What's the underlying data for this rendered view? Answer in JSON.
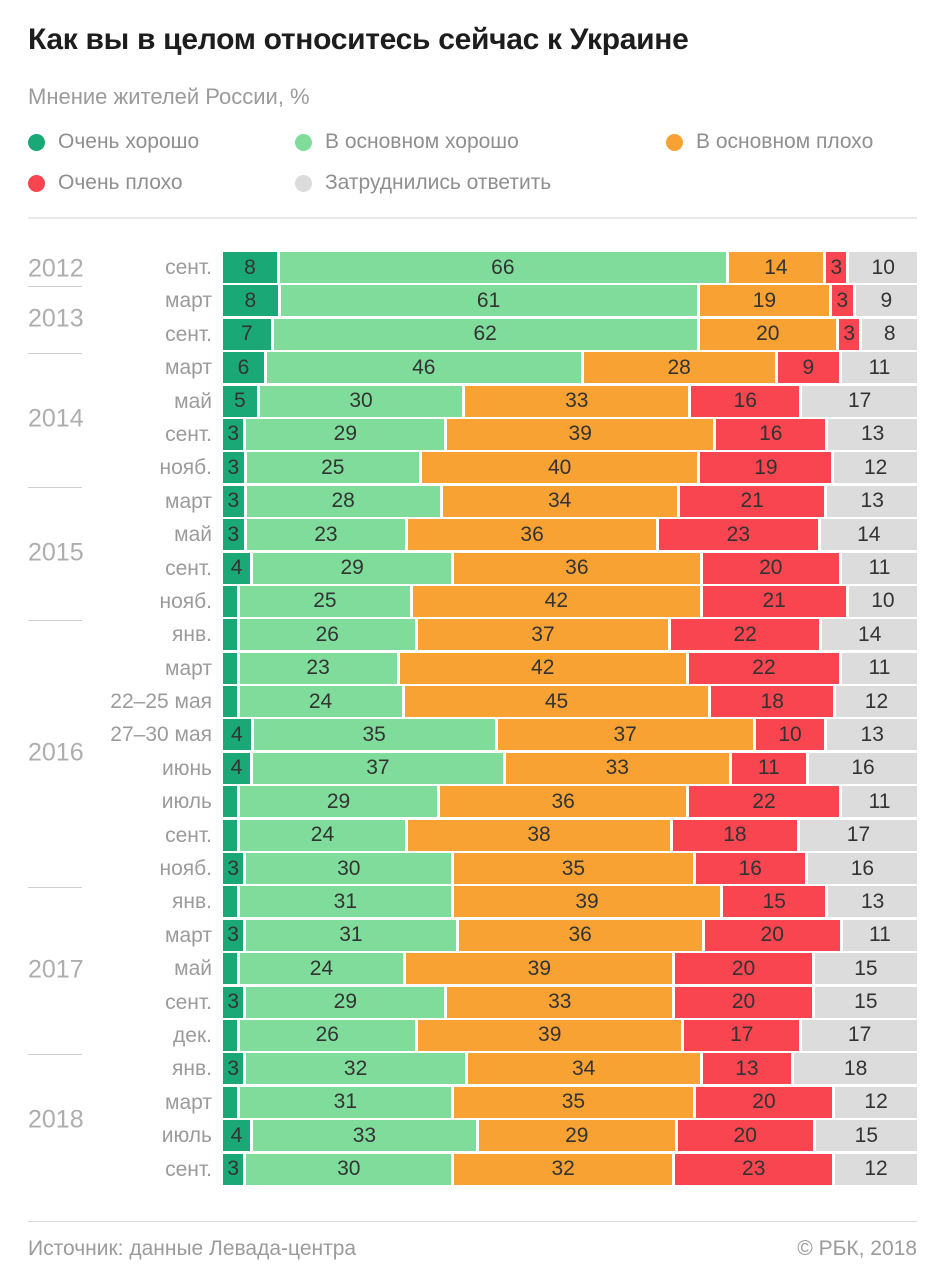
{
  "title": "Как вы в целом относитесь сейчас к Украине",
  "subtitle": "Мнение жителей России, %",
  "legend": [
    {
      "label": "Очень хорошо",
      "color": "#1ba877"
    },
    {
      "label": "В основном хорошо",
      "color": "#7fdc9b"
    },
    {
      "label": "В основном плохо",
      "color": "#f9a234"
    },
    {
      "label": "Очень плохо",
      "color": "#f8454f"
    },
    {
      "label": "Затруднились ответить",
      "color": "#dcdcdc"
    }
  ],
  "footer": {
    "source": "Источник: данные Левада-центра",
    "copyright": "© РБК, 2018"
  },
  "chart_data": {
    "type": "bar",
    "stacked": true,
    "orientation": "horizontal",
    "unit": "%",
    "label_min_value": 3,
    "series_names": [
      "Очень хорошо",
      "В основном хорошо",
      "В основном плохо",
      "Очень плохо",
      "Затруднились ответить"
    ],
    "groups": [
      {
        "year": "2012",
        "rows": [
          {
            "month": "сент.",
            "values": [
              8,
              66,
              14,
              3,
              10
            ]
          }
        ]
      },
      {
        "year": "2013",
        "rows": [
          {
            "month": "март",
            "values": [
              8,
              61,
              19,
              3,
              9
            ]
          },
          {
            "month": "сент.",
            "values": [
              7,
              62,
              20,
              3,
              8
            ]
          }
        ]
      },
      {
        "year": "2014",
        "rows": [
          {
            "month": "март",
            "values": [
              6,
              46,
              28,
              9,
              11
            ]
          },
          {
            "month": "май",
            "values": [
              5,
              30,
              33,
              16,
              17
            ]
          },
          {
            "month": "сент.",
            "values": [
              3,
              29,
              39,
              16,
              13
            ]
          },
          {
            "month": "нояб.",
            "values": [
              3,
              25,
              40,
              19,
              12
            ]
          }
        ]
      },
      {
        "year": "2015",
        "rows": [
          {
            "month": "март",
            "values": [
              3,
              28,
              34,
              21,
              13
            ]
          },
          {
            "month": "май",
            "values": [
              3,
              23,
              36,
              23,
              14
            ]
          },
          {
            "month": "сент.",
            "values": [
              4,
              29,
              36,
              20,
              11
            ]
          },
          {
            "month": "нояб.",
            "values": [
              2,
              25,
              42,
              21,
              10
            ]
          }
        ]
      },
      {
        "year": "2016",
        "rows": [
          {
            "month": "янв.",
            "values": [
              2,
              26,
              37,
              22,
              14
            ]
          },
          {
            "month": "март",
            "values": [
              2,
              23,
              42,
              22,
              11
            ]
          },
          {
            "month": "22–25 мая",
            "values": [
              2,
              24,
              45,
              18,
              12
            ]
          },
          {
            "month": "27–30 мая",
            "values": [
              4,
              35,
              37,
              10,
              13
            ]
          },
          {
            "month": "июнь",
            "values": [
              4,
              37,
              33,
              11,
              16
            ]
          },
          {
            "month": "июль",
            "values": [
              2,
              29,
              36,
              22,
              11
            ]
          },
          {
            "month": "сент.",
            "values": [
              2,
              24,
              38,
              18,
              17
            ]
          },
          {
            "month": "нояб.",
            "values": [
              3,
              30,
              35,
              16,
              16
            ]
          }
        ]
      },
      {
        "year": "2017",
        "rows": [
          {
            "month": "янв.",
            "values": [
              2,
              31,
              39,
              15,
              13
            ]
          },
          {
            "month": "март",
            "values": [
              3,
              31,
              36,
              20,
              11
            ]
          },
          {
            "month": "май",
            "values": [
              2,
              24,
              39,
              20,
              15
            ]
          },
          {
            "month": "сент.",
            "values": [
              3,
              29,
              33,
              20,
              15
            ]
          },
          {
            "month": "дек.",
            "values": [
              2,
              26,
              39,
              17,
              17
            ]
          }
        ]
      },
      {
        "year": "2018",
        "rows": [
          {
            "month": "янв.",
            "values": [
              3,
              32,
              34,
              13,
              18
            ]
          },
          {
            "month": "март",
            "values": [
              2,
              31,
              35,
              20,
              12
            ]
          },
          {
            "month": "июль",
            "values": [
              4,
              33,
              29,
              20,
              15
            ]
          },
          {
            "month": "сент.",
            "values": [
              3,
              30,
              32,
              23,
              12
            ]
          }
        ]
      }
    ]
  }
}
